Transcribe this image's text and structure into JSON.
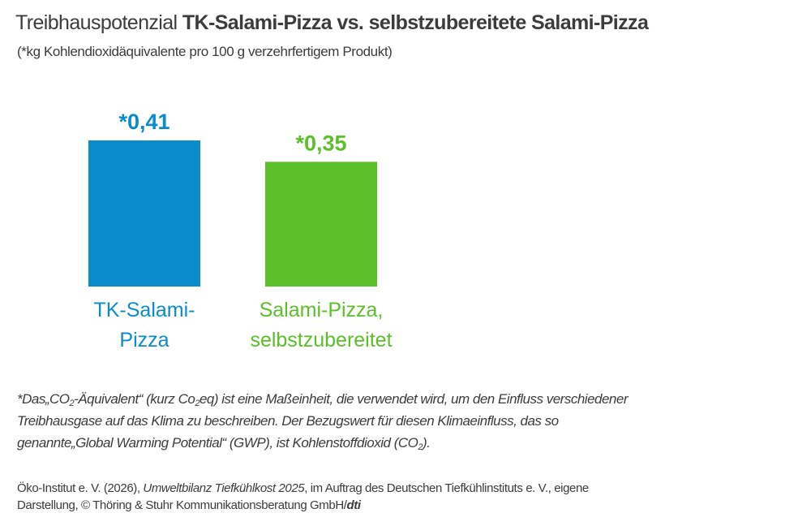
{
  "title_light": "Treibhauspotenzial ",
  "title_bold": "TK-Salami-Pizza vs. selbstzubereitete Salami-Pizza",
  "subtitle": "(*kg Kohlendioxidäquivalente pro 100 g verzehrfertigem Produkt)",
  "chart_data": {
    "type": "bar",
    "categories": [
      "TK-Salami-Pizza",
      "Salami-Pizza, selbstzubereitet"
    ],
    "category_lines": [
      [
        "TK-Salami-",
        "Pizza"
      ],
      [
        "Salami-Pizza,",
        "selbstzubereitet"
      ]
    ],
    "values": [
      0.41,
      0.35
    ],
    "data_labels": [
      "*0,41",
      "*0,35"
    ],
    "colors": [
      "#0a8ccc",
      "#5bbf2a"
    ],
    "ylim": [
      0,
      0.41
    ],
    "grid": false,
    "title": "",
    "xlabel": "",
    "ylabel": ""
  },
  "footnote": {
    "part1": "*Das„CO",
    "sub1": "2",
    "part2": "-Äquivalent“ (kurz Co",
    "sub2": "2",
    "part3": "eq) ist eine Maßeinheit, die verwendet wird, um den Einfluss verschiedener Treibhausgase auf das Klima zu beschreiben. Der Bezugswert für diesen Klimaeinfluss, das so genannte„Global Warming Potential“ (GWP), ist Kohlenstoffdioxid (CO",
    "sub3": "2",
    "part4": ")."
  },
  "source": {
    "part1": "Öko-Institut e. V. (2026), ",
    "italic": "Umweltbilanz Tiefkühlkost 2025",
    "part2": ", im Auftrag des Deutschen Tiefkühlinstituts e. V., eigene Darstellung, © Thöring & Stuhr Kommunikationsberatung GmbH/",
    "brand": "dti"
  }
}
